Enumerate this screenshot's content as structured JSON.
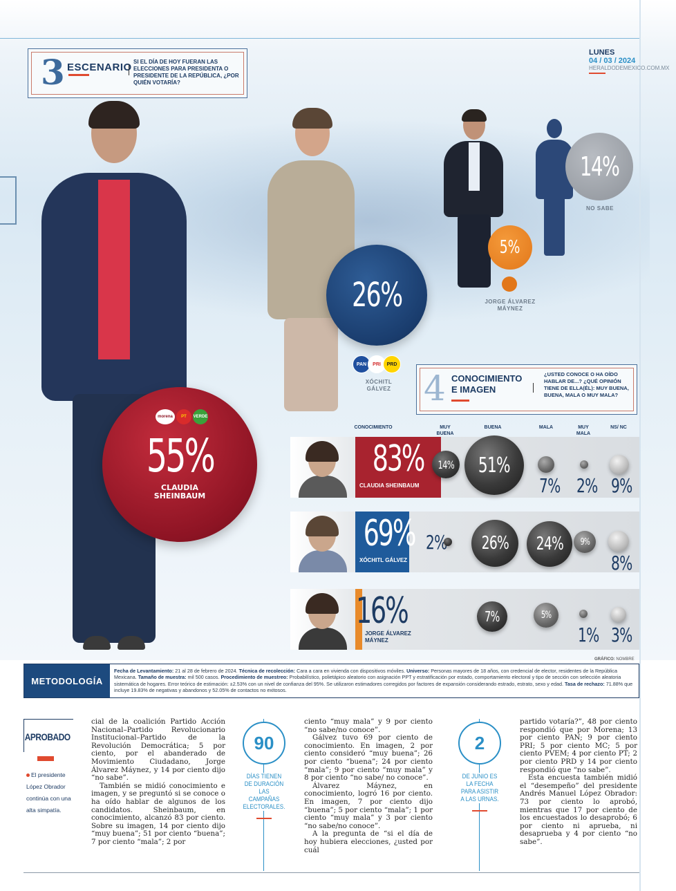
{
  "header": {
    "scenario_number": "3",
    "scenario_title": "ESCENARIO",
    "scenario_question": "SI EL DÍA DE HOY FUERAN LAS ELECCIONES PARA PRESIDENTA O PRESIDENTE DE LA REPÚBLICA, ¿POR QUIÉN VOTARÍA?",
    "day": "LUNES",
    "date": "04 / 03 / 2024",
    "site": "HERALDODEMEXICO.COM.MX"
  },
  "scenario": {
    "sheinbaum": {
      "value": "55%",
      "name": "CLAUDIA SHEINBAUM",
      "logos": [
        "morena",
        "PT",
        "VERDE"
      ]
    },
    "galvez": {
      "value": "26%",
      "name": "XÓCHITL GÁLVEZ",
      "logos": [
        "PAN",
        "PRI",
        "PRD"
      ]
    },
    "maynez": {
      "value": "5%",
      "name": "JORGE ÁLVAREZ MÁYNEZ"
    },
    "no_sabe": {
      "value": "14%",
      "name": "NO SABE"
    }
  },
  "section4": {
    "number": "4",
    "title_line1": "CONOCIMIENTO",
    "title_line2": "E IMAGEN",
    "question": "¿USTED CONOCE O HA OÍDO HABLAR DE...? ¿QUÉ OPINIÓN TIENE DE ELLA(ÉL): MUY BUENA, BUENA, MALA O MUY MALA?",
    "columns": {
      "conocimiento": "CONOCIMIENTO",
      "muy_buena": "MUY BUENA",
      "buena": "BUENA",
      "mala": "MALA",
      "muy_mala": "MUY MALA",
      "ns_nc": "NS/ NC"
    },
    "rows": [
      {
        "name": "CLAUDIA SHEINBAUM",
        "conocimiento": "83%",
        "muy_buena": "14%",
        "buena": "51%",
        "mala": "7%",
        "muy_mala": "2%",
        "ns_nc": "9%",
        "color": "#a8232f"
      },
      {
        "name": "XÓCHITL GÁLVEZ",
        "conocimiento": "69%",
        "muy_buena": "2%",
        "buena": "26%",
        "mala": "24%",
        "muy_mala": "9%",
        "ns_nc": "8%",
        "color": "#1f5b9b"
      },
      {
        "name": "JORGE ÁLVAREZ MÁYNEZ",
        "conocimiento": "16%",
        "muy_buena": "",
        "buena": "7%",
        "mala": "5%",
        "muy_mala": "1%",
        "ns_nc": "3%",
        "color": "#e88a2a"
      }
    ]
  },
  "credit": {
    "label": "GRÁFICO:",
    "name": "NOMBRE"
  },
  "methodology": {
    "label": "METODOLOGÍA",
    "k1": "Fecha de Levantamiento:",
    "v1": " 21 al 28 de febrero de 2024. ",
    "k2": "Técnica de recolección:",
    "v2": " Cara a cara en vivienda con dispositivos móviles. ",
    "k3": "Universo:",
    "v3": " Personas mayores de 18 años, con credencial de elector, residentes de la República Mexicana. ",
    "k4": "Tamaño de muestra:",
    "v4": " mil 500 casos. ",
    "k5": "Procedimiento de muestreo:",
    "v5": " Probabilístico, polietápico aleatorio con asignación PPT y estratificación por estado, comportamiento electoral y tipo de sección con selección aleatoria sistemática de hogares. Error teórico de estimación: ±2.53% con un nivel de confianza del 95%. Se utilizaron estimadores corregidos por factores de expansión considerando estrado, estrato, sexo y edad. ",
    "k6": "Tasa de rechazo:",
    "v6": " 71.88% que incluye 19.83% de negativas y abandonos y 52.05% de contactos no exitosos."
  },
  "sidebar": {
    "title": "APROBADO",
    "text": "El presidente López Obrador continúa con una alta simpatía."
  },
  "facts": [
    {
      "number": "90",
      "text": "DÍAS TIENEN DE DURACIÓN LAS CAMPAÑAS ELECTORALES."
    },
    {
      "number": "2",
      "text": "DE JUNIO ES LA FECHA PARA ASISTIR A LAS URNAS."
    }
  ],
  "body": {
    "col1_p1": "cial de la coalición Partido Acción Nacional–Partido Revolucionario Institucional–Partido de la Revolución Democrática; 5 por ciento, por el abanderado de Movimiento Ciudadano, Jorge Álvarez Máynez, y 14 por ciento dijo “no sabe”.",
    "col1_p2": "También se midió conocimiento e imagen, y se preguntó si se conoce o ha oído hablar de algunos de los candidatos. Sheinbaum, en conocimiento, alcanzó 83 por ciento. Sobre su imagen, 14 por ciento dijo “muy buena”; 51 por ciento “buena”; 7 por ciento “mala”; 2 por",
    "col2_p1": "ciento “muy mala” y 9 por ciento “no sabe/no conoce”.",
    "col2_p2": "Gálvez tuvo 69 por ciento de conocimiento. En imagen, 2 por ciento consideró “muy buena”; 26 por ciento “buena”; 24 por ciento “mala”; 9 por ciento “muy mala” y 8 por ciento “no sabe/ no conoce”.",
    "col2_p3": "Álvarez Máynez, en conocimiento, logró 16 por ciento. En imagen, 7 por ciento dijo “buena”; 5 por ciento “mala”; 1 por ciento “muy mala” y 3 por ciento “no sabe/no conoce”.",
    "col2_p4": "A la pregunta de “si el día de hoy hubiera elecciones, ¿usted por cuál",
    "col3_p1": "partido votaría?”, 48 por ciento respondió que por Morena; 13 por ciento PAN; 9 por ciento PRI; 5 por ciento MC; 5 por ciento PVEM; 4 por ciento PT; 2 por ciento PRD y 14 por ciento respondió que “no sabe”.",
    "col3_p2": "Esta encuesta también midió el “desempeño” del presidente Andrés Manuel López Obrador: 73 por ciento lo aprobó, mientras que 17 por ciento de los encuestados lo desaprobó; 6 por ciento ni aprueba, ni desaprueba y 4 por ciento “no sabe”."
  }
}
